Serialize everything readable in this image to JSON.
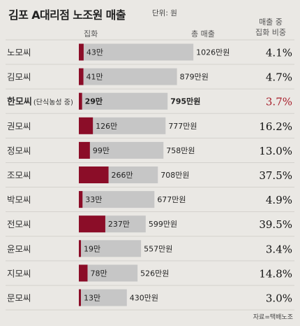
{
  "title": "김포 A대리점 노조원 매출",
  "unit": "단위: 원",
  "headers": {
    "gift": "집화",
    "total": "총 매출",
    "share_line1": "매출 중",
    "share_line2": "집화 비중"
  },
  "source": "자료=택배노조",
  "colors": {
    "gift_bar": "#8b0d28",
    "total_bar": "#c6c6c6",
    "highlight_share": "#a71d2a",
    "text": "#333333",
    "background": "#eae8e4"
  },
  "chart_data": {
    "type": "bar",
    "orientation": "horizontal",
    "value_unit": "만원",
    "categories": [
      "노모씨",
      "김모씨",
      "한모씨",
      "권모씨",
      "정모씨",
      "조모씨",
      "박모씨",
      "전모씨",
      "윤모씨",
      "지모씨",
      "문모씨"
    ],
    "category_notes": [
      "",
      "",
      "(단식농성 중)",
      "",
      "",
      "",
      "",
      "",
      "",
      "",
      ""
    ],
    "highlight_index": 2,
    "series": [
      {
        "name": "집화",
        "values": [
          43,
          41,
          29,
          126,
          99,
          266,
          33,
          237,
          19,
          78,
          13
        ],
        "labels": [
          "43만",
          "41만",
          "29만",
          "126만",
          "99만",
          "266만",
          "33만",
          "237만",
          "19만",
          "78만",
          "13만"
        ]
      },
      {
        "name": "총 매출",
        "values": [
          1026,
          879,
          795,
          777,
          758,
          708,
          677,
          599,
          557,
          526,
          430
        ],
        "labels": [
          "1026만원",
          "879만원",
          "795만원",
          "777만원",
          "758만원",
          "708만원",
          "677만원",
          "599만원",
          "557만원",
          "526만원",
          "430만원"
        ]
      }
    ],
    "share": [
      "4.1%",
      "4.7%",
      "3.7%",
      "16.2%",
      "13.0%",
      "37.5%",
      "4.9%",
      "39.5%",
      "3.4%",
      "14.8%",
      "3.0%"
    ]
  }
}
